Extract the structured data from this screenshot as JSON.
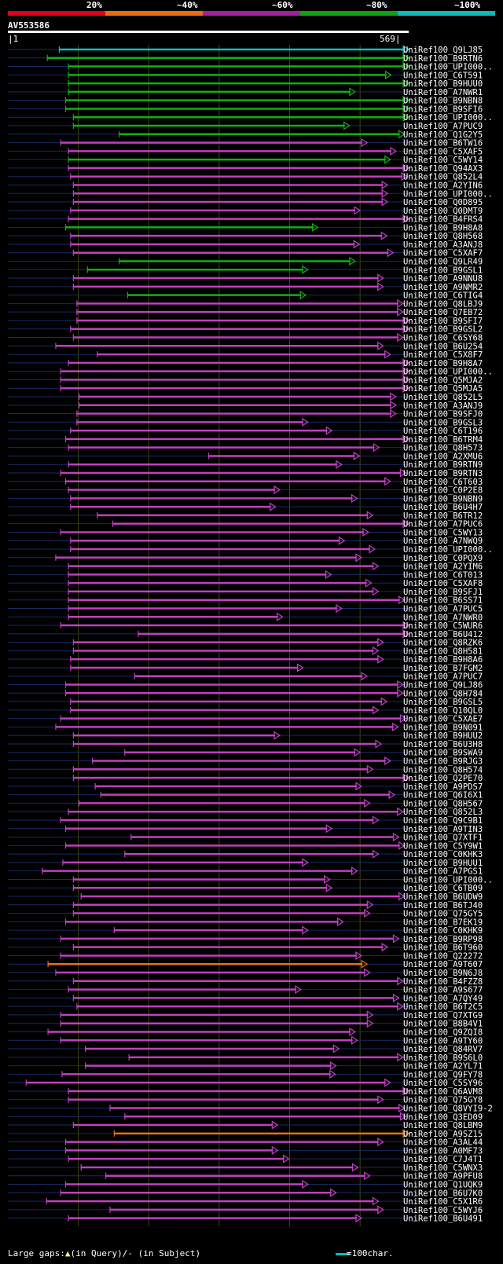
{
  "legend": {
    "labels": [
      {
        "text": "20%",
        "color": "#e0001c"
      },
      {
        "text": "~40%",
        "color": "#e86c10"
      },
      {
        "text": "~60%",
        "color": "#a020a0"
      },
      {
        "text": "~80%",
        "color": "#10a010"
      },
      {
        "text": "~100%",
        "color": "#10b8b8"
      }
    ]
  },
  "query": {
    "name": "AV553586",
    "start_label": "|1",
    "end_label": "569|",
    "length": 569
  },
  "colors": {
    "cyan": "#10c0c0",
    "green": "#10b010",
    "magenta": "#c040c0",
    "orange": "#e87010",
    "faint": "#1a2a60",
    "grid": "#3a4a10",
    "gap": "#ffff88"
  },
  "hits": [
    {
      "name": "UniRef100_Q9LJ85",
      "start": 73,
      "end": 569,
      "color": "cyan"
    },
    {
      "name": "UniRef100_B9RTN6",
      "start": 56,
      "end": 569,
      "color": "green"
    },
    {
      "name": "UniRef100_UPI000..",
      "start": 86,
      "end": 569,
      "color": "green"
    },
    {
      "name": "UniRef100_C6T591",
      "start": 86,
      "end": 544,
      "color": "green"
    },
    {
      "name": "UniRef100_B9HUU0",
      "start": 86,
      "end": 569,
      "color": "green"
    },
    {
      "name": "UniRef100_A7NWR1",
      "start": 86,
      "end": 493,
      "color": "green"
    },
    {
      "name": "UniRef100_B9NBN8",
      "start": 82,
      "end": 569,
      "color": "green"
    },
    {
      "name": "UniRef100_B9SFI6",
      "start": 82,
      "end": 569,
      "color": "green"
    },
    {
      "name": "UniRef100_UPI000..",
      "start": 93,
      "end": 569,
      "color": "green"
    },
    {
      "name": "UniRef100_A7PUC9",
      "start": 93,
      "end": 485,
      "color": "green"
    },
    {
      "name": "UniRef100_Q1G2Y5",
      "start": 158,
      "end": 563,
      "color": "green"
    },
    {
      "name": "UniRef100_B6TW16",
      "start": 75,
      "end": 510,
      "color": "magenta"
    },
    {
      "name": "UniRef100_C5XAF5",
      "start": 86,
      "end": 551,
      "color": "magenta"
    },
    {
      "name": "UniRef100_C5WY14",
      "start": 86,
      "end": 543,
      "color": "green"
    },
    {
      "name": "UniRef100_Q94AX3",
      "start": 86,
      "end": 569,
      "color": "magenta"
    },
    {
      "name": "UniRef100_Q852L4",
      "start": 89,
      "end": 567,
      "color": "magenta"
    },
    {
      "name": "UniRef100_A2YIN6",
      "start": 93,
      "end": 539,
      "color": "magenta"
    },
    {
      "name": "UniRef100_UPI000..",
      "start": 93,
      "end": 539,
      "color": "magenta"
    },
    {
      "name": "UniRef100_Q0D895",
      "start": 93,
      "end": 539,
      "color": "magenta"
    },
    {
      "name": "UniRef100_Q0DMT9",
      "start": 89,
      "end": 500,
      "color": "magenta"
    },
    {
      "name": "UniRef100_B4FRS4",
      "start": 86,
      "end": 569,
      "color": "magenta"
    },
    {
      "name": "UniRef100_B9H8A8",
      "start": 82,
      "end": 440,
      "color": "green"
    },
    {
      "name": "UniRef100_Q8H568",
      "start": 89,
      "end": 538,
      "color": "magenta"
    },
    {
      "name": "UniRef100_A3ANJ8",
      "start": 89,
      "end": 499,
      "color": "magenta"
    },
    {
      "name": "UniRef100_C5XAF7",
      "start": 93,
      "end": 547,
      "color": "magenta"
    },
    {
      "name": "UniRef100_Q9LR49",
      "start": 158,
      "end": 493,
      "color": "green"
    },
    {
      "name": "UniRef100_B9GSL1",
      "start": 113,
      "end": 426,
      "color": "green"
    },
    {
      "name": "UniRef100_A9NNU8",
      "start": 93,
      "end": 533,
      "color": "magenta"
    },
    {
      "name": "UniRef100_A9NMR2",
      "start": 93,
      "end": 533,
      "color": "magenta"
    },
    {
      "name": "UniRef100_C6TIG4",
      "start": 170,
      "end": 423,
      "color": "green"
    },
    {
      "name": "UniRef100_Q8LBJ9",
      "start": 98,
      "end": 561,
      "color": "magenta"
    },
    {
      "name": "UniRef100_Q7EB72",
      "start": 98,
      "end": 561,
      "color": "magenta"
    },
    {
      "name": "UniRef100_B9SFI7",
      "start": 98,
      "end": 569,
      "color": "magenta"
    },
    {
      "name": "UniRef100_B9GSL2",
      "start": 89,
      "end": 569,
      "color": "magenta"
    },
    {
      "name": "UniRef100_C6SY68",
      "start": 93,
      "end": 561,
      "color": "magenta"
    },
    {
      "name": "UniRef100_B6U254",
      "start": 68,
      "end": 533,
      "color": "magenta"
    },
    {
      "name": "UniRef100_C5X8F7",
      "start": 127,
      "end": 543,
      "color": "magenta"
    },
    {
      "name": "UniRef100_B9H8A7",
      "start": 86,
      "end": 569,
      "color": "magenta"
    },
    {
      "name": "UniRef100_UPI000..",
      "start": 75,
      "end": 569,
      "color": "magenta"
    },
    {
      "name": "UniRef100_Q5MJA2",
      "start": 75,
      "end": 569,
      "color": "magenta"
    },
    {
      "name": "UniRef100_Q5MJA5",
      "start": 75,
      "end": 569,
      "color": "magenta"
    },
    {
      "name": "UniRef100_Q852L5",
      "start": 101,
      "end": 551,
      "color": "magenta"
    },
    {
      "name": "UniRef100_A3ANJ9",
      "start": 101,
      "end": 551,
      "color": "magenta"
    },
    {
      "name": "UniRef100_B9SFJ0",
      "start": 98,
      "end": 551,
      "color": "magenta"
    },
    {
      "name": "UniRef100_B9GSL3",
      "start": 98,
      "end": 426,
      "color": "magenta"
    },
    {
      "name": "UniRef100_C6T196",
      "start": 89,
      "end": 460,
      "color": "magenta"
    },
    {
      "name": "UniRef100_B6TRM4",
      "start": 82,
      "end": 569,
      "color": "magenta"
    },
    {
      "name": "UniRef100_Q8H573",
      "start": 86,
      "end": 527,
      "color": "magenta"
    },
    {
      "name": "UniRef100_A2XMU6",
      "start": 285,
      "end": 499,
      "color": "magenta"
    },
    {
      "name": "UniRef100_B9RTN9",
      "start": 86,
      "end": 474,
      "color": "magenta"
    },
    {
      "name": "UniRef100_B9RTN3",
      "start": 75,
      "end": 565,
      "color": "magenta"
    },
    {
      "name": "UniRef100_C6T603",
      "start": 82,
      "end": 543,
      "color": "magenta"
    },
    {
      "name": "UniRef100_C0P2E8",
      "start": 86,
      "end": 386,
      "color": "magenta"
    },
    {
      "name": "UniRef100_B9NBN9",
      "start": 89,
      "end": 496,
      "color": "magenta"
    },
    {
      "name": "UniRef100_B6U4H7",
      "start": 89,
      "end": 380,
      "color": "magenta"
    },
    {
      "name": "UniRef100_B6TR12",
      "start": 127,
      "end": 518,
      "color": "magenta"
    },
    {
      "name": "UniRef100_A7PUC6",
      "start": 149,
      "end": 569,
      "color": "magenta"
    },
    {
      "name": "UniRef100_C5WY13",
      "start": 75,
      "end": 512,
      "color": "magenta"
    },
    {
      "name": "UniRef100_A7NWQ9",
      "start": 89,
      "end": 478,
      "color": "magenta"
    },
    {
      "name": "UniRef100_UPI000..",
      "start": 89,
      "end": 521,
      "color": "magenta"
    },
    {
      "name": "UniRef100_C0PQX9",
      "start": 68,
      "end": 502,
      "color": "magenta"
    },
    {
      "name": "UniRef100_A2YIM6",
      "start": 86,
      "end": 526,
      "color": "magenta"
    },
    {
      "name": "UniRef100_C6T013",
      "start": 86,
      "end": 459,
      "color": "magenta"
    },
    {
      "name": "UniRef100_C5XAF8",
      "start": 86,
      "end": 516,
      "color": "magenta"
    },
    {
      "name": "UniRef100_B9SFJ1",
      "start": 86,
      "end": 526,
      "color": "magenta"
    },
    {
      "name": "UniRef100_B6SS71",
      "start": 86,
      "end": 563,
      "color": "magenta"
    },
    {
      "name": "UniRef100_A7PUC5",
      "start": 86,
      "end": 474,
      "color": "magenta"
    },
    {
      "name": "UniRef100_A7NWR0",
      "start": 86,
      "end": 390,
      "color": "magenta"
    },
    {
      "name": "UniRef100_C5WUR6",
      "start": 75,
      "end": 569,
      "color": "magenta"
    },
    {
      "name": "UniRef100_B6U412",
      "start": 185,
      "end": 569,
      "color": "magenta"
    },
    {
      "name": "UniRef100_Q8RZK6",
      "start": 93,
      "end": 533,
      "color": "magenta"
    },
    {
      "name": "UniRef100_Q8H581",
      "start": 93,
      "end": 526,
      "color": "magenta"
    },
    {
      "name": "UniRef100_B9H8A6",
      "start": 89,
      "end": 533,
      "color": "magenta"
    },
    {
      "name": "UniRef100_B7FGM2",
      "start": 89,
      "end": 419,
      "color": "magenta"
    },
    {
      "name": "UniRef100_A7PUC7",
      "start": 180,
      "end": 510,
      "color": "magenta"
    },
    {
      "name": "UniRef100_Q9LJ86",
      "start": 82,
      "end": 561,
      "color": "magenta"
    },
    {
      "name": "UniRef100_Q8H784",
      "start": 82,
      "end": 561,
      "color": "magenta"
    },
    {
      "name": "UniRef100_B9GSL5",
      "start": 89,
      "end": 538,
      "color": "magenta"
    },
    {
      "name": "UniRef100_Q10QL0",
      "start": 89,
      "end": 526,
      "color": "magenta"
    },
    {
      "name": "UniRef100_C5XAE7",
      "start": 75,
      "end": 565,
      "color": "magenta"
    },
    {
      "name": "UniRef100_B9N091",
      "start": 68,
      "end": 554,
      "color": "magenta"
    },
    {
      "name": "UniRef100_B9HUU2",
      "start": 93,
      "end": 386,
      "color": "magenta"
    },
    {
      "name": "UniRef100_B6U3H8",
      "start": 93,
      "end": 530,
      "color": "magenta"
    },
    {
      "name": "UniRef100_B9SWA9",
      "start": 166,
      "end": 500,
      "color": "magenta"
    },
    {
      "name": "UniRef100_B9RJG3",
      "start": 120,
      "end": 543,
      "color": "magenta"
    },
    {
      "name": "UniRef100_Q8H574",
      "start": 93,
      "end": 518,
      "color": "magenta"
    },
    {
      "name": "UniRef100_Q2PE70",
      "start": 93,
      "end": 569,
      "color": "magenta"
    },
    {
      "name": "UniRef100_A9PDS7",
      "start": 124,
      "end": 502,
      "color": "magenta"
    },
    {
      "name": "UniRef100_Q6I6X1",
      "start": 132,
      "end": 549,
      "color": "magenta"
    },
    {
      "name": "UniRef100_Q8H567",
      "start": 101,
      "end": 514,
      "color": "magenta"
    },
    {
      "name": "UniRef100_Q852L3",
      "start": 86,
      "end": 561,
      "color": "magenta"
    },
    {
      "name": "UniRef100_Q9C9B1",
      "start": 75,
      "end": 526,
      "color": "magenta"
    },
    {
      "name": "UniRef100_A9TIN3",
      "start": 82,
      "end": 460,
      "color": "magenta"
    },
    {
      "name": "UniRef100_Q7XTF1",
      "start": 175,
      "end": 555,
      "color": "magenta"
    },
    {
      "name": "UniRef100_C5Y9W1",
      "start": 82,
      "end": 563,
      "color": "magenta"
    },
    {
      "name": "UniRef100_C0KHK3",
      "start": 166,
      "end": 526,
      "color": "magenta"
    },
    {
      "name": "UniRef100_B9HUU1",
      "start": 78,
      "end": 426,
      "color": "magenta"
    },
    {
      "name": "UniRef100_A7PGS1",
      "start": 49,
      "end": 496,
      "color": "magenta"
    },
    {
      "name": "UniRef100_UPI000..",
      "start": 93,
      "end": 457,
      "color": "magenta"
    },
    {
      "name": "UniRef100_C6TB09",
      "start": 93,
      "end": 460,
      "color": "magenta"
    },
    {
      "name": "UniRef100_B6UDW9",
      "start": 104,
      "end": 563,
      "color": "magenta"
    },
    {
      "name": "UniRef100_B6TJ40",
      "start": 93,
      "end": 518,
      "color": "magenta"
    },
    {
      "name": "UniRef100_Q75GY5",
      "start": 93,
      "end": 514,
      "color": "magenta"
    },
    {
      "name": "UniRef100_B7EK19",
      "start": 82,
      "end": 476,
      "color": "magenta"
    },
    {
      "name": "UniRef100_C0KHK9",
      "start": 151,
      "end": 426,
      "color": "magenta"
    },
    {
      "name": "UniRef100_B9RP98",
      "start": 75,
      "end": 555,
      "color": "magenta"
    },
    {
      "name": "UniRef100_B6T960",
      "start": 93,
      "end": 539,
      "color": "magenta"
    },
    {
      "name": "UniRef100_Q22272",
      "start": 75,
      "end": 502,
      "color": "magenta"
    },
    {
      "name": "UniRef100_A9T607",
      "start": 57,
      "end": 510,
      "color": "orange"
    },
    {
      "name": "UniRef100_B9N6J8",
      "start": 68,
      "end": 514,
      "color": "magenta"
    },
    {
      "name": "UniRef100_B4FZZ8",
      "start": 93,
      "end": 561,
      "color": "magenta"
    },
    {
      "name": "UniRef100_A9S677",
      "start": 86,
      "end": 416,
      "color": "magenta"
    },
    {
      "name": "UniRef100_A7QY49",
      "start": 93,
      "end": 555,
      "color": "magenta"
    },
    {
      "name": "UniRef100_B6T2C5",
      "start": 98,
      "end": 561,
      "color": "magenta"
    },
    {
      "name": "UniRef100_Q7XTG9",
      "start": 75,
      "end": 518,
      "color": "magenta"
    },
    {
      "name": "UniRef100_B8B4V1",
      "start": 75,
      "end": 518,
      "color": "magenta"
    },
    {
      "name": "UniRef100_Q9ZQI8",
      "start": 57,
      "end": 493,
      "color": "magenta"
    },
    {
      "name": "UniRef100_A9TY60",
      "start": 75,
      "end": 496,
      "color": "magenta"
    },
    {
      "name": "UniRef100_Q84RV7",
      "start": 110,
      "end": 470,
      "color": "magenta"
    },
    {
      "name": "UniRef100_B9S6L0",
      "start": 172,
      "end": 561,
      "color": "magenta"
    },
    {
      "name": "UniRef100_A2YL71",
      "start": 110,
      "end": 466,
      "color": "magenta"
    },
    {
      "name": "UniRef100_Q9FY78",
      "start": 77,
      "end": 465,
      "color": "magenta"
    },
    {
      "name": "UniRef100_C5SY96",
      "start": 26,
      "end": 543,
      "color": "magenta"
    },
    {
      "name": "UniRef100_Q6AVM8",
      "start": 86,
      "end": 569,
      "color": "magenta"
    },
    {
      "name": "UniRef100_Q75GY8",
      "start": 86,
      "end": 533,
      "color": "magenta"
    },
    {
      "name": "UniRef100_Q8VYI9-2",
      "start": 145,
      "end": 563,
      "color": "magenta"
    },
    {
      "name": "UniRef100_Q3ED09",
      "start": 166,
      "end": 565,
      "color": "magenta"
    },
    {
      "name": "UniRef100_Q8LBM9",
      "start": 93,
      "end": 383,
      "color": "magenta"
    },
    {
      "name": "UniRef100_A9SZ15",
      "start": 151,
      "end": 569,
      "color": "orange"
    },
    {
      "name": "UniRef100_A3AL44",
      "start": 82,
      "end": 533,
      "color": "magenta"
    },
    {
      "name": "UniRef100_A0MF73",
      "start": 82,
      "end": 383,
      "color": "magenta"
    },
    {
      "name": "UniRef100_C7J4T1",
      "start": 86,
      "end": 399,
      "color": "magenta"
    },
    {
      "name": "UniRef100_C5WNX3",
      "start": 104,
      "end": 497,
      "color": "magenta"
    },
    {
      "name": "UniRef100_A9PFU8",
      "start": 139,
      "end": 514,
      "color": "magenta"
    },
    {
      "name": "UniRef100_Q1UQK9",
      "start": 82,
      "end": 426,
      "color": "magenta"
    },
    {
      "name": "UniRef100_B6U7K0",
      "start": 75,
      "end": 466,
      "color": "magenta"
    },
    {
      "name": "UniRef100_C5X1R6",
      "start": 55,
      "end": 526,
      "color": "magenta"
    },
    {
      "name": "UniRef100_C5WYJ6",
      "start": 145,
      "end": 533,
      "color": "magenta"
    },
    {
      "name": "UniRef100_B6U491",
      "start": 86,
      "end": 502,
      "color": "magenta"
    }
  ],
  "footer": {
    "large_gaps": "Large gaps:",
    "in_query": "(in Query)/",
    "dash": "-",
    "in_subject": " (in Subject)",
    "scale": "=100char."
  }
}
